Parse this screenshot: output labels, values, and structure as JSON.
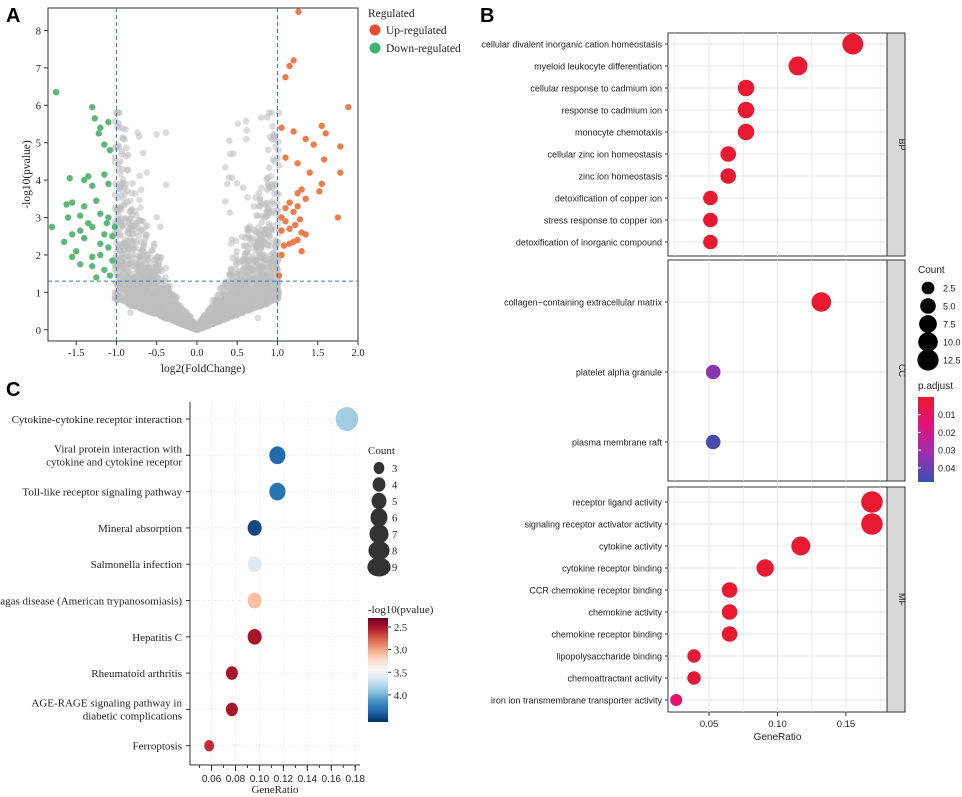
{
  "panels": {
    "a": "A",
    "b": "B",
    "c": "C"
  },
  "chart_data": [
    {
      "panel": "A",
      "type": "scatter",
      "subtype": "volcano",
      "xlabel": "log2(FoldChange)",
      "ylabel": "-log10(pvalue)",
      "xlim": [
        -1.85,
        2.0
      ],
      "ylim": [
        -0.3,
        8.6
      ],
      "xticks": [
        "-1.5",
        "-1.0",
        "-0.5",
        "0.0",
        "0.5",
        "1.0",
        "1.5",
        "2.0"
      ],
      "xtick_values": [
        -1.5,
        -1.0,
        -0.5,
        0.0,
        0.5,
        1.0,
        1.5,
        2.0
      ],
      "yticks": [
        "0",
        "1",
        "2",
        "3",
        "4",
        "5",
        "6",
        "7",
        "8"
      ],
      "ytick_values": [
        0,
        1,
        2,
        3,
        4,
        5,
        6,
        7,
        8
      ],
      "thresholds": {
        "x": [
          -1.0,
          1.0
        ],
        "y": 1.3
      },
      "legend": {
        "title": "Regulated",
        "items": [
          {
            "label": "Up-regulated",
            "color": "#e64b35"
          },
          {
            "label": "Down-regulated",
            "color": "#3cb371"
          }
        ]
      },
      "series": [
        {
          "name": "Up-regulated",
          "color": "#ee7d4e",
          "points": [
            [
              1.26,
              8.5
            ],
            [
              1.2,
              7.2
            ],
            [
              1.15,
              7.05
            ],
            [
              1.1,
              6.75
            ],
            [
              1.88,
              5.95
            ],
            [
              1.55,
              5.45
            ],
            [
              1.6,
              5.25
            ],
            [
              1.2,
              5.3
            ],
            [
              1.05,
              5.4
            ],
            [
              1.35,
              5.1
            ],
            [
              1.45,
              4.95
            ],
            [
              1.78,
              4.9
            ],
            [
              1.25,
              4.45
            ],
            [
              1.1,
              4.6
            ],
            [
              1.58,
              4.55
            ],
            [
              1.4,
              4.2
            ],
            [
              1.55,
              3.9
            ],
            [
              1.78,
              4.2
            ],
            [
              1.52,
              3.7
            ],
            [
              1.3,
              3.75
            ],
            [
              1.25,
              3.65
            ],
            [
              1.15,
              3.4
            ],
            [
              1.25,
              3.3
            ],
            [
              1.35,
              3.5
            ],
            [
              1.2,
              3.15
            ],
            [
              1.1,
              3.25
            ],
            [
              1.28,
              2.95
            ],
            [
              1.05,
              3.0
            ],
            [
              1.75,
              3.0
            ],
            [
              1.22,
              2.8
            ],
            [
              1.15,
              2.7
            ],
            [
              1.05,
              2.65
            ],
            [
              1.3,
              2.6
            ],
            [
              1.25,
              2.4
            ],
            [
              1.15,
              2.3
            ],
            [
              1.08,
              2.25
            ],
            [
              1.3,
              2.1
            ],
            [
              1.2,
              2.35
            ],
            [
              1.05,
              2.0
            ],
            [
              1.02,
              1.45
            ],
            [
              1.35,
              2.55
            ],
            [
              1.1,
              2.9
            ]
          ]
        },
        {
          "name": "Down-regulated",
          "color": "#5cb878",
          "points": [
            [
              -1.75,
              6.35
            ],
            [
              -1.3,
              5.95
            ],
            [
              -1.27,
              5.65
            ],
            [
              -1.2,
              5.4
            ],
            [
              -1.1,
              5.55
            ],
            [
              -1.22,
              5.25
            ],
            [
              -1.15,
              4.95
            ],
            [
              -1.08,
              4.8
            ],
            [
              -1.35,
              4.1
            ],
            [
              -1.58,
              4.05
            ],
            [
              -1.4,
              4.0
            ],
            [
              -1.15,
              4.15
            ],
            [
              -1.3,
              3.85
            ],
            [
              -1.1,
              3.9
            ],
            [
              -1.62,
              3.35
            ],
            [
              -1.55,
              3.4
            ],
            [
              -1.4,
              3.3
            ],
            [
              -1.25,
              3.45
            ],
            [
              -1.6,
              3.0
            ],
            [
              -1.45,
              3.05
            ],
            [
              -1.35,
              2.85
            ],
            [
              -1.2,
              3.1
            ],
            [
              -1.1,
              3.0
            ],
            [
              -1.8,
              2.75
            ],
            [
              -1.55,
              2.55
            ],
            [
              -1.45,
              2.65
            ],
            [
              -1.3,
              2.75
            ],
            [
              -1.15,
              2.55
            ],
            [
              -1.05,
              2.5
            ],
            [
              -1.65,
              2.35
            ],
            [
              -1.4,
              2.45
            ],
            [
              -1.2,
              2.3
            ],
            [
              -1.1,
              2.2
            ],
            [
              -1.5,
              2.1
            ],
            [
              -1.3,
              1.95
            ],
            [
              -1.2,
              2.0
            ],
            [
              -1.05,
              1.85
            ],
            [
              -1.45,
              1.75
            ],
            [
              -1.3,
              1.7
            ],
            [
              -1.15,
              1.6
            ],
            [
              -1.25,
              1.4
            ],
            [
              -1.08,
              1.45
            ],
            [
              -1.55,
              1.95
            ],
            [
              -1.02,
              2.75
            ],
            [
              -1.12,
              2.85
            ]
          ]
        },
        {
          "name": "Not significant",
          "color": "#bdbdbd",
          "points": "dense cloud of gray points roughly bounded by |log2FC| < 1.0 and -log10(pvalue) up to about 5.8, highest near ±1.0"
        }
      ]
    },
    {
      "panel": "B",
      "type": "scatter",
      "subtype": "dotplot",
      "xlabel": "GeneRatio",
      "xlim": [
        0.02,
        0.18
      ],
      "xticks": [
        "0.05",
        "0.10",
        "0.15"
      ],
      "xtick_values": [
        0.05,
        0.1,
        0.15
      ],
      "facets": [
        {
          "name": "BP",
          "terms": [
            {
              "term": "cellular divalent inorganic cation homeostasis",
              "gene_ratio": 0.155,
              "count": 12,
              "p_adjust": 0.001
            },
            {
              "term": "myeloid leukocyte differentiation",
              "gene_ratio": 0.115,
              "count": 9,
              "p_adjust": 0.001
            },
            {
              "term": "cellular response to cadmium ion",
              "gene_ratio": 0.077,
              "count": 6,
              "p_adjust": 0.001
            },
            {
              "term": "response to cadmium ion",
              "gene_ratio": 0.077,
              "count": 6,
              "p_adjust": 0.001
            },
            {
              "term": "monocyte chemotaxis",
              "gene_ratio": 0.077,
              "count": 6,
              "p_adjust": 0.001
            },
            {
              "term": "cellular zinc ion homeostasis",
              "gene_ratio": 0.064,
              "count": 5,
              "p_adjust": 0.001
            },
            {
              "term": "zinc ion homeostasis",
              "gene_ratio": 0.064,
              "count": 5,
              "p_adjust": 0.001
            },
            {
              "term": "detoxification of copper ion",
              "gene_ratio": 0.051,
              "count": 4,
              "p_adjust": 0.001
            },
            {
              "term": "stress response to copper ion",
              "gene_ratio": 0.051,
              "count": 4,
              "p_adjust": 0.001
            },
            {
              "term": "detoxification of inorganic compound",
              "gene_ratio": 0.051,
              "count": 4,
              "p_adjust": 0.001
            }
          ]
        },
        {
          "name": "CC",
          "terms": [
            {
              "term": "collagen−containing extracellular matrix",
              "gene_ratio": 0.132,
              "count": 10,
              "p_adjust": 0.001
            },
            {
              "term": "platelet alpha granule",
              "gene_ratio": 0.053,
              "count": 4,
              "p_adjust": 0.035
            },
            {
              "term": "plasma membrane raft",
              "gene_ratio": 0.053,
              "count": 4,
              "p_adjust": 0.046
            }
          ]
        },
        {
          "name": "MF",
          "terms": [
            {
              "term": "receptor ligand activity",
              "gene_ratio": 0.169,
              "count": 13,
              "p_adjust": 0.001
            },
            {
              "term": "signaling receptor activator activity",
              "gene_ratio": 0.169,
              "count": 13,
              "p_adjust": 0.001
            },
            {
              "term": "cytokine activity",
              "gene_ratio": 0.117,
              "count": 9,
              "p_adjust": 0.001
            },
            {
              "term": "cytokine receptor binding",
              "gene_ratio": 0.091,
              "count": 7,
              "p_adjust": 0.001
            },
            {
              "term": "CCR chemokine receptor binding",
              "gene_ratio": 0.065,
              "count": 5,
              "p_adjust": 0.001
            },
            {
              "term": "chemokine activity",
              "gene_ratio": 0.065,
              "count": 5,
              "p_adjust": 0.001
            },
            {
              "term": "chemokine receptor binding",
              "gene_ratio": 0.065,
              "count": 5,
              "p_adjust": 0.001
            },
            {
              "term": "lipopolysaccharide binding",
              "gene_ratio": 0.039,
              "count": 3,
              "p_adjust": 0.002
            },
            {
              "term": "chemoattractant activity",
              "gene_ratio": 0.039,
              "count": 3,
              "p_adjust": 0.002
            },
            {
              "term": "iron ion transmembrane transporter activity",
              "gene_ratio": 0.026,
              "count": 2,
              "p_adjust": 0.012
            }
          ]
        }
      ],
      "size_legend": {
        "title": "Count",
        "labels": [
          "2.5",
          "5.0",
          "7.5",
          "10.0",
          "12.5"
        ],
        "values": [
          2.5,
          5.0,
          7.5,
          10.0,
          12.5
        ]
      },
      "color_legend": {
        "title": "p.adjust",
        "labels": [
          "0.01",
          "0.02",
          "0.03",
          "0.04"
        ],
        "values": [
          0.01,
          0.02,
          0.03,
          0.04
        ],
        "range": [
          0.0,
          0.048
        ],
        "colors": [
          "#e8192c",
          "#e0127f",
          "#9b2fae",
          "#3b4fb0"
        ]
      }
    },
    {
      "panel": "C",
      "type": "scatter",
      "subtype": "dotplot",
      "xlabel": "GeneRatio",
      "xlim": [
        0.042,
        0.184
      ],
      "xticks": [
        "0.06",
        "0.08",
        "0.10",
        "0.12",
        "0.14",
        "0.16",
        "0.18"
      ],
      "xtick_values": [
        0.06,
        0.08,
        0.1,
        0.12,
        0.14,
        0.16,
        0.18
      ],
      "terms": [
        {
          "term": [
            "Cytokine-cytokine receptor interaction"
          ],
          "gene_ratio": 0.173,
          "count": 9,
          "neg_log10_p": 3.85
        },
        {
          "term": [
            "Viral protein interaction with",
            "cytokine and cytokine receptor"
          ],
          "gene_ratio": 0.115,
          "count": 6,
          "neg_log10_p": 4.35
        },
        {
          "term": [
            "Toll-like receptor signaling pathway"
          ],
          "gene_ratio": 0.115,
          "count": 6,
          "neg_log10_p": 4.3
        },
        {
          "term": [
            "Mineral absorption"
          ],
          "gene_ratio": 0.096,
          "count": 5,
          "neg_log10_p": 4.5
        },
        {
          "term": [
            "Salmonella infection"
          ],
          "gene_ratio": 0.096,
          "count": 5,
          "neg_log10_p": 3.6
        },
        {
          "term": [
            "Chagas disease (American trypanosomiasis)"
          ],
          "gene_ratio": 0.096,
          "count": 5,
          "neg_log10_p": 3.1
        },
        {
          "term": [
            "Hepatitis C"
          ],
          "gene_ratio": 0.096,
          "count": 5,
          "neg_log10_p": 2.5
        },
        {
          "term": [
            "Rheumatoid arthritis"
          ],
          "gene_ratio": 0.077,
          "count": 4,
          "neg_log10_p": 2.5
        },
        {
          "term": [
            "AGE-RAGE signaling pathway in",
            "diabetic complications"
          ],
          "gene_ratio": 0.077,
          "count": 4,
          "neg_log10_p": 2.5
        },
        {
          "term": [
            "Ferroptosis"
          ],
          "gene_ratio": 0.058,
          "count": 3,
          "neg_log10_p": 2.6
        }
      ],
      "size_legend": {
        "title": "Count",
        "labels": [
          "3",
          "4",
          "5",
          "6",
          "7",
          "8",
          "9"
        ],
        "values": [
          3,
          4,
          5,
          6,
          7,
          8,
          9
        ]
      },
      "color_legend": {
        "title": "-log10(pvalue)",
        "labels": [
          "2.5",
          "3.0",
          "3.5",
          "4.0"
        ],
        "values": [
          2.5,
          3.0,
          3.5,
          4.0
        ],
        "range": [
          2.3,
          4.6
        ],
        "colors": [
          "#67001f",
          "#b2182b",
          "#d6604d",
          "#f4a582",
          "#fddbc7",
          "#f7f7f7",
          "#d1e5f0",
          "#92c5de",
          "#4393c3",
          "#2166ac",
          "#053061"
        ]
      }
    }
  ]
}
